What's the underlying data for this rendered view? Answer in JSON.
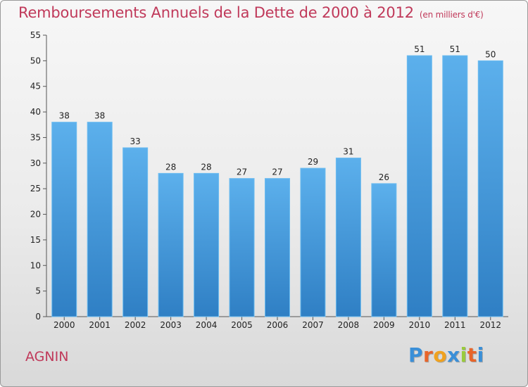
{
  "title": "Remboursements Annuels de la Dette de 2000 à 2012",
  "subtitle": "(en milliers d'€)",
  "commune": "AGNIN",
  "logo": {
    "letters": [
      "P",
      "r",
      "o",
      "x",
      "i",
      "t",
      "i"
    ],
    "colors": [
      "#3a8fd8",
      "#e8652a",
      "#f0a21f",
      "#3a8fd8",
      "#9acb3c",
      "#e8652a",
      "#3a8fd8"
    ]
  },
  "colors": {
    "bar": "#3d94d6",
    "bar_light": "#5eb0ea",
    "title": "#c0395a"
  },
  "chart_data": {
    "type": "bar",
    "categories": [
      "2000",
      "2001",
      "2002",
      "2003",
      "2004",
      "2005",
      "2006",
      "2007",
      "2008",
      "2009",
      "2010",
      "2011",
      "2012"
    ],
    "values": [
      38,
      38,
      33,
      28,
      28,
      27,
      27,
      29,
      31,
      26,
      51,
      51,
      50
    ],
    "ylim": [
      0,
      55
    ],
    "yticks": [
      0,
      5,
      10,
      15,
      20,
      25,
      30,
      35,
      40,
      45,
      50,
      55
    ],
    "grid": false,
    "legend": "none"
  }
}
